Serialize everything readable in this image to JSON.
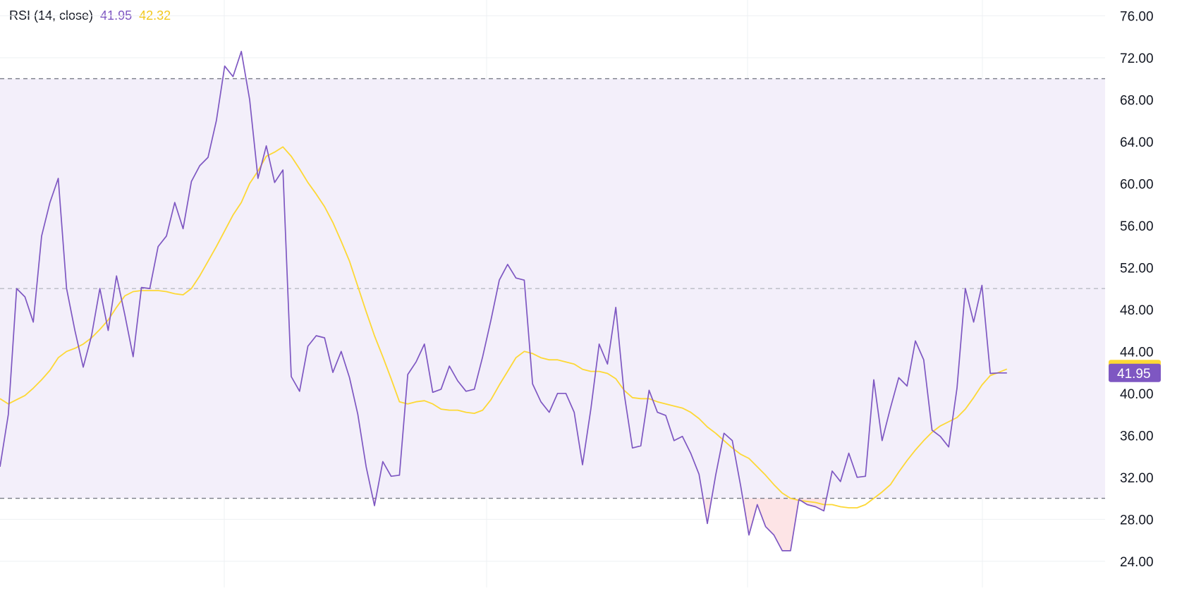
{
  "legend": {
    "indicator": "RSI (14, close)",
    "rsi_value": "41.95",
    "ma_value": "42.32"
  },
  "colors": {
    "rsi": "#7e57c2",
    "ma": "#fdd835",
    "band_fill": "#f3effa",
    "oversold_fill": "#fde4e6",
    "grid": "#eef0f3",
    "level_line": "#787b86",
    "rsi_badge": "#7e57c2",
    "ma_badge": "#fdd835",
    "axis_text": "#131722"
  },
  "chart_data": {
    "type": "line",
    "ylim": [
      21.5,
      77.5
    ],
    "ticks": [
      "76.00",
      "72.00",
      "68.00",
      "64.00",
      "60.00",
      "56.00",
      "52.00",
      "48.00",
      "44.00",
      "40.00",
      "36.00",
      "32.00",
      "28.00",
      "24.00"
    ],
    "levels": {
      "upper": 70,
      "middle": 50,
      "lower": 30
    },
    "x_count": 120,
    "series": [
      {
        "key": "rsi",
        "values": [
          [
            0,
            33.0
          ],
          [
            1,
            38.0
          ],
          [
            2,
            50.0
          ],
          [
            3,
            49.2
          ],
          [
            4,
            46.8
          ],
          [
            5,
            55.0
          ],
          [
            6,
            58.2
          ],
          [
            7,
            60.5
          ],
          [
            8,
            50.0
          ],
          [
            9,
            46.0
          ],
          [
            10,
            42.5
          ],
          [
            11,
            45.5
          ],
          [
            12,
            50.0
          ],
          [
            13,
            46.0
          ],
          [
            14,
            51.2
          ],
          [
            15,
            47.5
          ],
          [
            16,
            43.5
          ],
          [
            17,
            50.1
          ],
          [
            18,
            50.0
          ],
          [
            19,
            54.0
          ],
          [
            20,
            55.0
          ],
          [
            21,
            58.2
          ],
          [
            22,
            55.7
          ],
          [
            23,
            60.2
          ],
          [
            24,
            61.7
          ],
          [
            25,
            62.5
          ],
          [
            26,
            66.0
          ],
          [
            27,
            71.2
          ],
          [
            28,
            70.2
          ],
          [
            29,
            72.6
          ],
          [
            30,
            68.0
          ],
          [
            31,
            60.5
          ],
          [
            32,
            63.6
          ],
          [
            33,
            60.1
          ],
          [
            34,
            61.3
          ],
          [
            35,
            41.6
          ],
          [
            36,
            40.2
          ],
          [
            37,
            44.5
          ],
          [
            38,
            45.5
          ],
          [
            39,
            45.3
          ],
          [
            40,
            42.0
          ],
          [
            41,
            44.0
          ],
          [
            42,
            41.5
          ],
          [
            43,
            38.0
          ],
          [
            44,
            33.0
          ],
          [
            45,
            29.3
          ],
          [
            46,
            33.5
          ],
          [
            47,
            32.1
          ],
          [
            48,
            32.2
          ],
          [
            49,
            41.8
          ],
          [
            50,
            43.0
          ],
          [
            51,
            44.7
          ],
          [
            52,
            40.1
          ],
          [
            53,
            40.4
          ],
          [
            54,
            42.6
          ],
          [
            55,
            41.2
          ],
          [
            56,
            40.2
          ],
          [
            57,
            40.4
          ],
          [
            58,
            43.5
          ],
          [
            59,
            47.0
          ],
          [
            60,
            50.8
          ],
          [
            61,
            52.3
          ],
          [
            62,
            51.0
          ],
          [
            63,
            50.8
          ],
          [
            64,
            40.9
          ],
          [
            65,
            39.2
          ],
          [
            66,
            38.2
          ],
          [
            67,
            40.0
          ],
          [
            68,
            40.0
          ],
          [
            69,
            38.2
          ],
          [
            70,
            33.2
          ],
          [
            71,
            38.5
          ],
          [
            72,
            44.7
          ],
          [
            73,
            42.8
          ],
          [
            74,
            48.2
          ],
          [
            75,
            40.0
          ],
          [
            76,
            34.8
          ],
          [
            77,
            35.0
          ],
          [
            78,
            40.3
          ],
          [
            79,
            38.2
          ],
          [
            80,
            37.9
          ],
          [
            81,
            35.5
          ],
          [
            82,
            35.9
          ],
          [
            83,
            34.3
          ],
          [
            84,
            32.3
          ],
          [
            85,
            27.6
          ],
          [
            86,
            32.2
          ],
          [
            87,
            36.2
          ],
          [
            88,
            35.5
          ],
          [
            89,
            31.2
          ],
          [
            90,
            26.5
          ],
          [
            91,
            29.4
          ],
          [
            92,
            27.3
          ],
          [
            93,
            26.5
          ],
          [
            94,
            25.0
          ],
          [
            95,
            25.0
          ],
          [
            96,
            29.9
          ],
          [
            97,
            29.4
          ],
          [
            98,
            29.2
          ],
          [
            99,
            28.8
          ],
          [
            100,
            32.6
          ],
          [
            101,
            31.6
          ],
          [
            102,
            34.3
          ],
          [
            103,
            32.0
          ],
          [
            104,
            32.1
          ],
          [
            105,
            41.3
          ],
          [
            106,
            35.5
          ],
          [
            107,
            38.6
          ],
          [
            108,
            41.5
          ],
          [
            109,
            40.7
          ],
          [
            110,
            45.0
          ],
          [
            111,
            43.2
          ],
          [
            112,
            36.5
          ],
          [
            113,
            35.9
          ],
          [
            114,
            34.9
          ],
          [
            115,
            40.5
          ],
          [
            116,
            50.0
          ],
          [
            117,
            46.8
          ],
          [
            118,
            50.3
          ],
          [
            119,
            41.9
          ],
          [
            120,
            41.95
          ],
          [
            121,
            41.95
          ]
        ]
      },
      {
        "key": "ma",
        "values": [
          [
            0,
            39.5
          ],
          [
            1,
            39.0
          ],
          [
            2,
            39.4
          ],
          [
            3,
            39.8
          ],
          [
            4,
            40.5
          ],
          [
            5,
            41.3
          ],
          [
            6,
            42.2
          ],
          [
            7,
            43.4
          ],
          [
            8,
            44.0
          ],
          [
            9,
            44.3
          ],
          [
            10,
            44.7
          ],
          [
            11,
            45.3
          ],
          [
            12,
            46.1
          ],
          [
            13,
            47.0
          ],
          [
            14,
            48.2
          ],
          [
            15,
            49.3
          ],
          [
            16,
            49.7
          ],
          [
            17,
            49.8
          ],
          [
            18,
            49.8
          ],
          [
            19,
            49.8
          ],
          [
            20,
            49.7
          ],
          [
            21,
            49.5
          ],
          [
            22,
            49.4
          ],
          [
            23,
            50.0
          ],
          [
            24,
            51.2
          ],
          [
            25,
            52.6
          ],
          [
            26,
            54.0
          ],
          [
            27,
            55.5
          ],
          [
            28,
            57.0
          ],
          [
            29,
            58.2
          ],
          [
            30,
            60.0
          ],
          [
            31,
            61.2
          ],
          [
            32,
            62.6
          ],
          [
            33,
            63.0
          ],
          [
            34,
            63.5
          ],
          [
            35,
            62.6
          ],
          [
            36,
            61.4
          ],
          [
            37,
            60.1
          ],
          [
            38,
            59.0
          ],
          [
            39,
            57.8
          ],
          [
            40,
            56.3
          ],
          [
            41,
            54.5
          ],
          [
            42,
            52.6
          ],
          [
            43,
            50.2
          ],
          [
            44,
            47.8
          ],
          [
            45,
            45.5
          ],
          [
            46,
            43.5
          ],
          [
            47,
            41.4
          ],
          [
            48,
            39.2
          ],
          [
            49,
            39.0
          ],
          [
            50,
            39.2
          ],
          [
            51,
            39.3
          ],
          [
            52,
            39.0
          ],
          [
            53,
            38.5
          ],
          [
            54,
            38.4
          ],
          [
            55,
            38.4
          ],
          [
            56,
            38.2
          ],
          [
            57,
            38.1
          ],
          [
            58,
            38.4
          ],
          [
            59,
            39.4
          ],
          [
            60,
            40.8
          ],
          [
            61,
            42.1
          ],
          [
            62,
            43.4
          ],
          [
            63,
            44.0
          ],
          [
            64,
            43.8
          ],
          [
            65,
            43.4
          ],
          [
            66,
            43.2
          ],
          [
            67,
            43.2
          ],
          [
            68,
            43.0
          ],
          [
            69,
            42.8
          ],
          [
            70,
            42.3
          ],
          [
            71,
            42.1
          ],
          [
            72,
            42.1
          ],
          [
            73,
            41.9
          ],
          [
            74,
            41.4
          ],
          [
            75,
            40.3
          ],
          [
            76,
            39.6
          ],
          [
            77,
            39.5
          ],
          [
            78,
            39.5
          ],
          [
            79,
            39.2
          ],
          [
            80,
            39.0
          ],
          [
            81,
            38.8
          ],
          [
            82,
            38.6
          ],
          [
            83,
            38.2
          ],
          [
            84,
            37.6
          ],
          [
            85,
            36.8
          ],
          [
            86,
            36.2
          ],
          [
            87,
            35.5
          ],
          [
            88,
            34.8
          ],
          [
            89,
            34.2
          ],
          [
            90,
            33.8
          ],
          [
            91,
            33.0
          ],
          [
            92,
            32.2
          ],
          [
            93,
            31.3
          ],
          [
            94,
            30.5
          ],
          [
            95,
            30.0
          ],
          [
            96,
            29.8
          ],
          [
            97,
            29.7
          ],
          [
            98,
            29.6
          ],
          [
            99,
            29.4
          ],
          [
            100,
            29.4
          ],
          [
            101,
            29.2
          ],
          [
            102,
            29.1
          ],
          [
            103,
            29.1
          ],
          [
            104,
            29.4
          ],
          [
            105,
            30.0
          ],
          [
            106,
            30.6
          ],
          [
            107,
            31.3
          ],
          [
            108,
            32.5
          ],
          [
            109,
            33.6
          ],
          [
            110,
            34.6
          ],
          [
            111,
            35.5
          ],
          [
            112,
            36.3
          ],
          [
            113,
            36.9
          ],
          [
            114,
            37.3
          ],
          [
            115,
            37.7
          ],
          [
            116,
            38.5
          ],
          [
            117,
            39.6
          ],
          [
            118,
            40.8
          ],
          [
            119,
            41.7
          ],
          [
            120,
            42.0
          ],
          [
            121,
            42.32
          ]
        ]
      }
    ]
  }
}
